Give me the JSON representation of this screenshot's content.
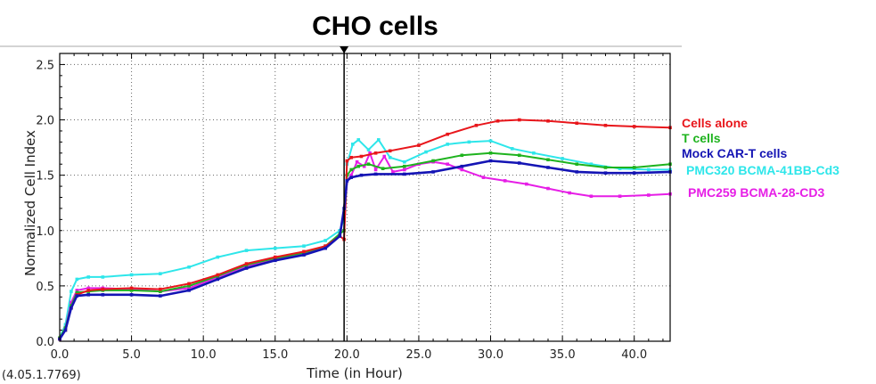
{
  "chart_data": {
    "type": "line",
    "title": "CHO cells",
    "xlabel": "Time (in Hour)",
    "ylabel": "Normalized Cell Index",
    "xlim": [
      0,
      42.5
    ],
    "ylim": [
      0,
      2.6
    ],
    "x_ticks": [
      "0.0",
      "5.0",
      "10.0",
      "15.0",
      "20.0",
      "25.0",
      "30.0",
      "35.0",
      "40.0"
    ],
    "y_ticks": [
      "0.0",
      "0.5",
      "1.0",
      "1.5",
      "2.0",
      "2.5"
    ],
    "footnote": "(4.05.1.7769)",
    "marker_x": 19.8,
    "grid": true,
    "legend_position": "right",
    "series": [
      {
        "name": "Cells alone",
        "color": "#e8161b",
        "x": [
          0,
          0.4,
          0.8,
          1.2,
          2,
          3,
          5,
          7,
          9,
          11,
          13,
          15,
          17,
          18.5,
          19.5,
          19.8,
          20,
          20.3,
          21,
          22,
          23,
          25,
          27,
          29,
          30.5,
          32,
          34,
          36,
          38,
          40,
          42.5
        ],
        "y": [
          0.02,
          0.1,
          0.3,
          0.42,
          0.46,
          0.47,
          0.48,
          0.47,
          0.52,
          0.6,
          0.7,
          0.76,
          0.81,
          0.86,
          0.95,
          0.92,
          1.63,
          1.66,
          1.67,
          1.7,
          1.72,
          1.77,
          1.87,
          1.95,
          1.99,
          2.0,
          1.99,
          1.97,
          1.95,
          1.94,
          1.93
        ]
      },
      {
        "name": "T cells",
        "color": "#1eb31e",
        "x": [
          0,
          0.4,
          0.8,
          1.2,
          2,
          3,
          5,
          7,
          9,
          11,
          13,
          15,
          17,
          18.5,
          19.5,
          19.8,
          20,
          20.3,
          20.8,
          21.5,
          22.5,
          24,
          26,
          28,
          30,
          32,
          34,
          36,
          38,
          40,
          42.5
        ],
        "y": [
          0.03,
          0.12,
          0.32,
          0.44,
          0.45,
          0.46,
          0.46,
          0.45,
          0.5,
          0.59,
          0.69,
          0.75,
          0.8,
          0.86,
          0.97,
          1.0,
          1.5,
          1.55,
          1.58,
          1.6,
          1.56,
          1.58,
          1.63,
          1.68,
          1.7,
          1.68,
          1.64,
          1.6,
          1.57,
          1.57,
          1.6
        ]
      },
      {
        "name": "Mock CAR-T cells",
        "color": "#1414b4",
        "x": [
          0,
          0.4,
          0.8,
          1.2,
          2,
          3,
          5,
          7,
          9,
          11,
          13,
          15,
          17,
          18.5,
          19.5,
          19.8,
          20,
          20.3,
          21,
          22,
          24,
          26,
          28,
          30,
          32,
          34,
          36,
          38,
          40,
          42.5
        ],
        "y": [
          0.02,
          0.1,
          0.3,
          0.41,
          0.42,
          0.42,
          0.42,
          0.41,
          0.46,
          0.56,
          0.66,
          0.73,
          0.78,
          0.84,
          0.95,
          1.2,
          1.45,
          1.48,
          1.5,
          1.51,
          1.51,
          1.53,
          1.58,
          1.63,
          1.61,
          1.57,
          1.53,
          1.52,
          1.52,
          1.53
        ]
      },
      {
        "name": "PMC320 BCMA-41BB-Cd3",
        "color": "#2ee6ea",
        "x": [
          0,
          0.4,
          0.8,
          1.2,
          2,
          3,
          5,
          7,
          9,
          11,
          13,
          15,
          17,
          18.5,
          19.5,
          19.8,
          20,
          20.4,
          20.8,
          21.5,
          22.2,
          23,
          24,
          25.5,
          27,
          28.5,
          30,
          31.5,
          33,
          35,
          37,
          39,
          41,
          42.5
        ],
        "y": [
          0.03,
          0.15,
          0.45,
          0.56,
          0.58,
          0.58,
          0.6,
          0.61,
          0.67,
          0.76,
          0.82,
          0.84,
          0.86,
          0.91,
          1.0,
          1.1,
          1.6,
          1.78,
          1.82,
          1.73,
          1.82,
          1.66,
          1.62,
          1.71,
          1.78,
          1.8,
          1.81,
          1.74,
          1.7,
          1.65,
          1.6,
          1.56,
          1.55,
          1.55
        ]
      },
      {
        "name": "PMC259 BCMA-28-CD3",
        "color": "#e61ee6",
        "x": [
          0,
          0.4,
          0.8,
          1.2,
          2,
          3,
          5,
          7,
          9,
          11,
          13,
          15,
          17,
          18.5,
          19.5,
          19.8,
          20,
          20.3,
          20.7,
          21.2,
          21.6,
          22,
          22.6,
          23.2,
          24,
          25,
          26,
          27,
          28,
          29.5,
          31,
          32.5,
          34,
          35.5,
          37,
          39,
          41,
          42.5
        ],
        "y": [
          0.02,
          0.12,
          0.35,
          0.46,
          0.48,
          0.48,
          0.47,
          0.45,
          0.48,
          0.58,
          0.68,
          0.74,
          0.79,
          0.85,
          0.97,
          1.0,
          1.45,
          1.5,
          1.62,
          1.58,
          1.7,
          1.55,
          1.67,
          1.53,
          1.55,
          1.6,
          1.62,
          1.6,
          1.55,
          1.48,
          1.45,
          1.42,
          1.38,
          1.34,
          1.31,
          1.31,
          1.32,
          1.33
        ]
      }
    ]
  }
}
